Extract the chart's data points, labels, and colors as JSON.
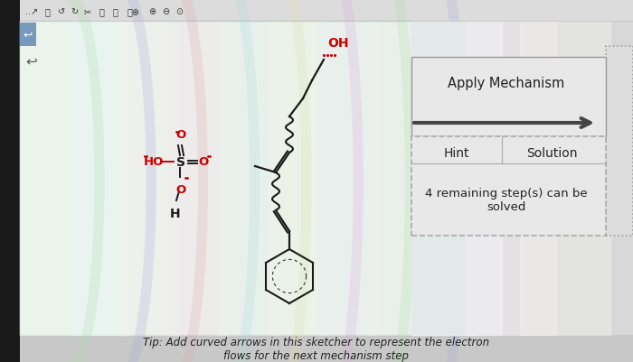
{
  "bg_color": "#c8c8c8",
  "toolbar_bg": "#dcdcdc",
  "canvas_bg_color": "#e8ede8",
  "canvas_border": "#aaaaaa",
  "right_panel_bg": "#d8d8d8",
  "hint_box_bg": "#e8e8e8",
  "hint_box_border": "#aaaaaa",
  "arrow_color": "#444444",
  "molecule_color": "#1a1a1a",
  "oh_color": "#cc0000",
  "apply_mechanism_text": "Apply Mechanism",
  "hint_text": "Hint",
  "solution_text": "Solution",
  "remaining_text": "4 remaining step(s) can be\nsolved",
  "tip_text": "Tip: Add curved arrows in this sketcher to represent the electron\nflows for the next mechanism step",
  "fig_width": 7.0,
  "fig_height": 4.02
}
